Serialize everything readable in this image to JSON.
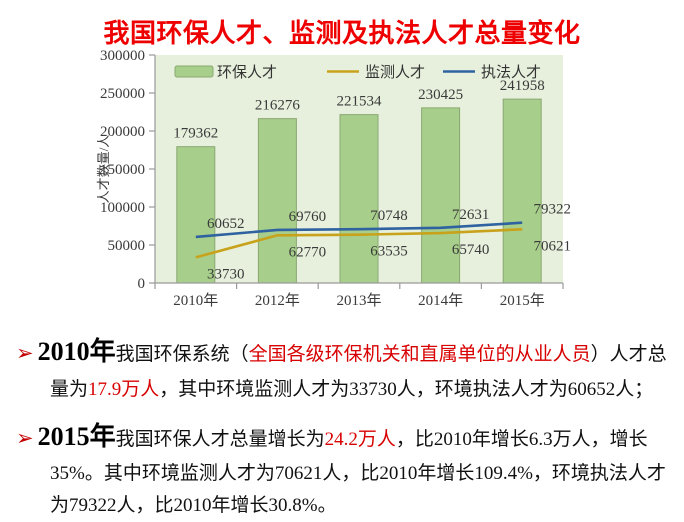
{
  "title": "我国环保人才、监测及执法人才总量变化",
  "chart_data": {
    "type": "bar",
    "subtype": "bar-with-line-overlays",
    "categories": [
      "2010年",
      "2012年",
      "2013年",
      "2014年",
      "2015年"
    ],
    "series": [
      {
        "name": "环保人才",
        "kind": "bar",
        "color": "#a7ce8a",
        "border": "#8aa872",
        "values": [
          179362,
          216276,
          221534,
          230425,
          241958
        ]
      },
      {
        "name": "监测人才",
        "kind": "line",
        "color": "#c9a21b",
        "values": [
          33730,
          62770,
          63535,
          65740,
          70621
        ]
      },
      {
        "name": "执法人才",
        "kind": "line",
        "color": "#2f62a0",
        "values": [
          60652,
          69760,
          70748,
          72631,
          79322
        ]
      }
    ],
    "xlabel": "",
    "ylabel": "人才数量/人",
    "ylim": [
      0,
      300000
    ],
    "ytick_step": 50000,
    "grid": false,
    "legend_position": "top-inside",
    "plot_bg": "#e7f0dc",
    "axis_color": "#9a9a9a",
    "label_color": "#3a3a3a"
  },
  "bullets": [
    {
      "marker": "➢",
      "segments": [
        {
          "t": "2010年",
          "c": "year"
        },
        {
          "t": "我国环保系统（",
          "c": "plain"
        },
        {
          "t": "全国各级环保机关和直属单位的从业人员",
          "c": "red"
        },
        {
          "t": "）人才总量为",
          "c": "plain"
        },
        {
          "t": "17.9万人",
          "c": "red"
        },
        {
          "t": "，其中环境监测人才为33730人，环境执法人才为60652人；",
          "c": "plain"
        }
      ]
    },
    {
      "marker": "➢",
      "segments": [
        {
          "t": "2015年",
          "c": "year"
        },
        {
          "t": "我国环保人才总量增长为",
          "c": "plain"
        },
        {
          "t": "24.2万人",
          "c": "red"
        },
        {
          "t": "，比2010年增长6.3万人，增长35%。其中环境监测人才为70621人，比2010年增长109.4%，环境执法人才为79322人，比2010年增长30.8%。",
          "c": "plain"
        }
      ]
    }
  ]
}
